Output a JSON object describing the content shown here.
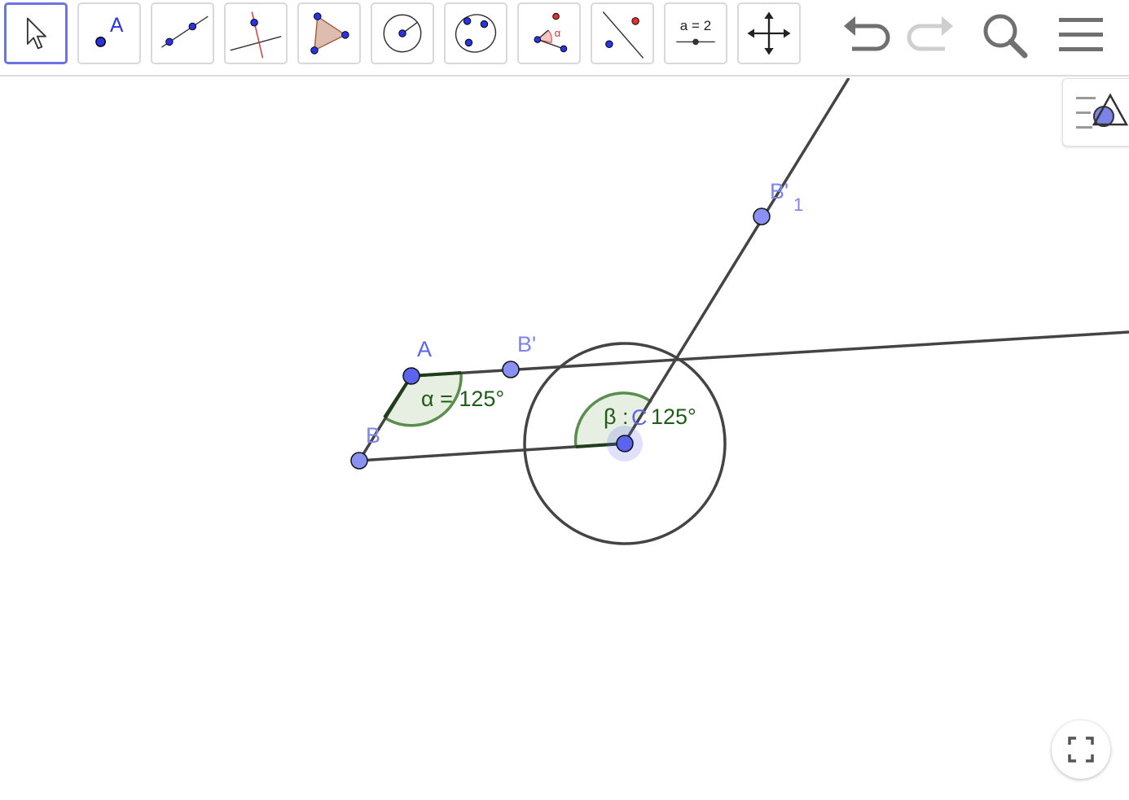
{
  "toolbar": {
    "tools": [
      {
        "name": "move",
        "icon": "arrow-cursor-icon",
        "active": true
      },
      {
        "name": "point",
        "icon": "point-icon",
        "label": "A"
      },
      {
        "name": "segment",
        "icon": "segment-icon"
      },
      {
        "name": "perpendicular-line",
        "icon": "perpendicular-line-icon"
      },
      {
        "name": "polygon",
        "icon": "polygon-icon"
      },
      {
        "name": "circle-center-point",
        "icon": "circle-center-icon"
      },
      {
        "name": "circle-three-points",
        "icon": "circle-three-points-icon"
      },
      {
        "name": "angle",
        "icon": "angle-icon",
        "label": "α"
      },
      {
        "name": "reflect-about-line",
        "icon": "reflect-icon"
      },
      {
        "name": "slider",
        "icon": "slider-icon",
        "label": "a = 2"
      },
      {
        "name": "move-graphics-view",
        "icon": "move-view-icon"
      }
    ],
    "right": [
      {
        "name": "undo",
        "icon": "undo-icon"
      },
      {
        "name": "redo",
        "icon": "redo-icon"
      },
      {
        "name": "search",
        "icon": "search-icon"
      },
      {
        "name": "menu",
        "icon": "hamburger-menu-icon"
      }
    ]
  },
  "points": {
    "A": "A",
    "B": "B",
    "C": "C",
    "B_prime": "B'",
    "B_prime_1": "B'",
    "B_prime_1_sub": "1"
  },
  "angles": {
    "alpha": "α = 125°",
    "beta_name": "β : ",
    "beta_value": "125°"
  },
  "colors": {
    "point_fill": "#6b74f2",
    "point_label": "#7d85e8",
    "angle_fill": "#e6efe2",
    "angle_stroke": "#5a8e4e",
    "angle_label": "#1e5c17",
    "line": "#444444",
    "active_tool": "#6c74e0"
  }
}
